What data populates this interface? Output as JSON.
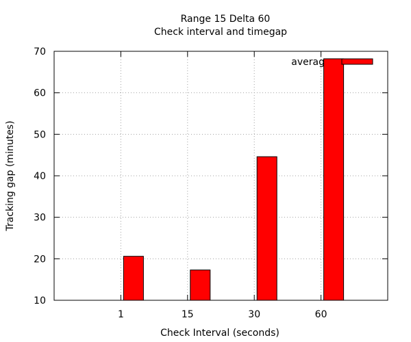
{
  "chart_data": {
    "type": "bar",
    "title": "Range 15 Delta 60",
    "subtitle": "Check interval and timegap",
    "xlabel": "Check Interval (seconds)",
    "ylabel": "Tracking gap (minutes)",
    "categories": [
      "1",
      "15",
      "30",
      "60"
    ],
    "series": [
      {
        "name": "average",
        "values": [
          20.6,
          17.3,
          44.6,
          68.2
        ]
      }
    ],
    "ylim": [
      10,
      70
    ],
    "yticks": [
      10,
      20,
      30,
      40,
      50,
      60,
      70
    ],
    "ytick_labels": [
      "10",
      "20",
      "30",
      "40",
      "50",
      "60",
      "70"
    ],
    "grid": true,
    "legend_position": "top-right",
    "legend_visible_text": "averag",
    "colors": {
      "bar": "#ff0000",
      "outline": "#000000",
      "grid": "#a0a0a0"
    }
  }
}
